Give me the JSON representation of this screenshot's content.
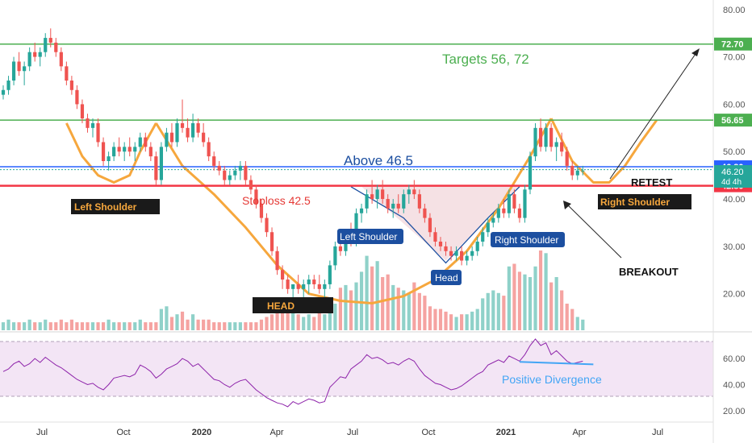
{
  "colors": {
    "up": "#26a69a",
    "down": "#ef5350",
    "vol_up": "#8fd1c9",
    "vol_down": "#f5a3a1",
    "pattern_orange": "#f6a73d",
    "target_green": "#4caf50",
    "blue_line": "#2962ff",
    "red_line": "#f23645",
    "label_blue": "#1c4fa0",
    "rsi_line": "#8e24aa",
    "rsi_band": "#f3e5f5",
    "divergence": "#42a5f5",
    "head_fill": "#f3d9dd",
    "axis_text": "#555555"
  },
  "chart_data": {
    "type": "candlestick",
    "title": "",
    "price_axis": {
      "min": 14,
      "max": 82,
      "ticks": [
        "20.00",
        "30.00",
        "40.00",
        "50.00",
        "60.00",
        "70.00",
        "80.00"
      ]
    },
    "time_axis": {
      "ticks": [
        "Jul",
        "Oct",
        "2020",
        "Apr",
        "Jul",
        "Oct",
        "2021",
        "Apr",
        "Jul"
      ]
    },
    "rsi_axis": {
      "min": 15,
      "max": 78,
      "ticks": [
        "20.00",
        "40.00",
        "60.00"
      ],
      "band": [
        30,
        70
      ]
    },
    "candles": [
      [
        62,
        64,
        61,
        63
      ],
      [
        63,
        66,
        62,
        65
      ],
      [
        65,
        70,
        64,
        69
      ],
      [
        69,
        71,
        66,
        67
      ],
      [
        67,
        69,
        64,
        68
      ],
      [
        68,
        72,
        67,
        71
      ],
      [
        71,
        73,
        69,
        70
      ],
      [
        70,
        72,
        68,
        71
      ],
      [
        71,
        75,
        70,
        74
      ],
      [
        74,
        76,
        72,
        73
      ],
      [
        73,
        74,
        70,
        71
      ],
      [
        71,
        72,
        67,
        68
      ],
      [
        68,
        69,
        64,
        65
      ],
      [
        65,
        66,
        62,
        63
      ],
      [
        63,
        64,
        59,
        60
      ],
      [
        60,
        61,
        56,
        57
      ],
      [
        57,
        58,
        54,
        55
      ],
      [
        55,
        57,
        53,
        56
      ],
      [
        56,
        57,
        51,
        52
      ],
      [
        52,
        53,
        47,
        48
      ],
      [
        48,
        50,
        46,
        49
      ],
      [
        49,
        52,
        48,
        51
      ],
      [
        51,
        53,
        49,
        50
      ],
      [
        50,
        52,
        48,
        51
      ],
      [
        51,
        53,
        49,
        50
      ],
      [
        50,
        52,
        48,
        51
      ],
      [
        51,
        54,
        50,
        53
      ],
      [
        53,
        54,
        50,
        51
      ],
      [
        51,
        52,
        48,
        49
      ],
      [
        49,
        50,
        43,
        44
      ],
      [
        44,
        52,
        43,
        51
      ],
      [
        51,
        55,
        50,
        54
      ],
      [
        54,
        56,
        51,
        52
      ],
      [
        52,
        57,
        51,
        56
      ],
      [
        56,
        61,
        54,
        55
      ],
      [
        55,
        57,
        52,
        53
      ],
      [
        53,
        58,
        52,
        56
      ],
      [
        56,
        57,
        53,
        54
      ],
      [
        54,
        56,
        51,
        52
      ],
      [
        52,
        53,
        48,
        49
      ],
      [
        49,
        50,
        46,
        47
      ],
      [
        47,
        48,
        45,
        46
      ],
      [
        46,
        47,
        43,
        44
      ],
      [
        44,
        46,
        43,
        45
      ],
      [
        45,
        47,
        44,
        46
      ],
      [
        46,
        48,
        44,
        47
      ],
      [
        47,
        48,
        43,
        44
      ],
      [
        44,
        45,
        41,
        42
      ],
      [
        42,
        43,
        38,
        39
      ],
      [
        39,
        40,
        35,
        36
      ],
      [
        36,
        37,
        32,
        33
      ],
      [
        33,
        34,
        28,
        29
      ],
      [
        29,
        30,
        24,
        25
      ],
      [
        25,
        26,
        21,
        23
      ],
      [
        23,
        24,
        20,
        21
      ],
      [
        21,
        22,
        19,
        22
      ],
      [
        22,
        24,
        20,
        21
      ],
      [
        21,
        23,
        19,
        22
      ],
      [
        22,
        24,
        20,
        23
      ],
      [
        23,
        24,
        21,
        22
      ],
      [
        22,
        24,
        20,
        21
      ],
      [
        21,
        23,
        19,
        22
      ],
      [
        22,
        27,
        21,
        26
      ],
      [
        26,
        31,
        25,
        30
      ],
      [
        30,
        33,
        28,
        29
      ],
      [
        29,
        33,
        28,
        32
      ],
      [
        32,
        35,
        30,
        31
      ],
      [
        31,
        38,
        30,
        37
      ],
      [
        37,
        39,
        35,
        38
      ],
      [
        38,
        42,
        37,
        41
      ],
      [
        41,
        44,
        39,
        40
      ],
      [
        40,
        43,
        38,
        42
      ],
      [
        42,
        44,
        39,
        40
      ],
      [
        40,
        41,
        37,
        38
      ],
      [
        38,
        40,
        36,
        39
      ],
      [
        39,
        41,
        37,
        38
      ],
      [
        38,
        42,
        37,
        41
      ],
      [
        41,
        43,
        39,
        42
      ],
      [
        42,
        44,
        40,
        41
      ],
      [
        41,
        42,
        37,
        38
      ],
      [
        38,
        39,
        35,
        36
      ],
      [
        36,
        37,
        32,
        33
      ],
      [
        33,
        34,
        30,
        31
      ],
      [
        31,
        32,
        29,
        30
      ],
      [
        30,
        31,
        28,
        29
      ],
      [
        29,
        30,
        27,
        28
      ],
      [
        28,
        30,
        27,
        29
      ],
      [
        29,
        30,
        26,
        27
      ],
      [
        27,
        29,
        26,
        28
      ],
      [
        28,
        30,
        27,
        29
      ],
      [
        29,
        32,
        28,
        31
      ],
      [
        31,
        34,
        30,
        33
      ],
      [
        33,
        36,
        32,
        35
      ],
      [
        35,
        37,
        34,
        36
      ],
      [
        36,
        39,
        35,
        38
      ],
      [
        38,
        40,
        36,
        37
      ],
      [
        37,
        42,
        36,
        41
      ],
      [
        41,
        42,
        37,
        38
      ],
      [
        38,
        39,
        35,
        36
      ],
      [
        36,
        43,
        35,
        42
      ],
      [
        42,
        50,
        41,
        49
      ],
      [
        49,
        56,
        48,
        55
      ],
      [
        55,
        57,
        50,
        51
      ],
      [
        51,
        56,
        50,
        55
      ],
      [
        55,
        56,
        50,
        51
      ],
      [
        51,
        53,
        48,
        52
      ],
      [
        52,
        54,
        49,
        50
      ],
      [
        50,
        51,
        46,
        47
      ],
      [
        47,
        48,
        44,
        45
      ],
      [
        45,
        47,
        44,
        46
      ],
      [
        46,
        47,
        45,
        46
      ]
    ],
    "volume": [
      3,
      4,
      3,
      3,
      3,
      4,
      3,
      3,
      4,
      3,
      3,
      4,
      3,
      4,
      3,
      3,
      3,
      3,
      3,
      3,
      4,
      3,
      3,
      3,
      3,
      3,
      4,
      3,
      3,
      3,
      8,
      9,
      5,
      6,
      7,
      4,
      6,
      4,
      4,
      4,
      3,
      3,
      3,
      3,
      3,
      3,
      3,
      3,
      3,
      4,
      5,
      6,
      8,
      9,
      10,
      7,
      6,
      5,
      6,
      5,
      7,
      6,
      9,
      10,
      16,
      17,
      15,
      18,
      22,
      28,
      24,
      26,
      20,
      21,
      17,
      16,
      15,
      14,
      18,
      14,
      13,
      9,
      8,
      8,
      7,
      6,
      5,
      6,
      6,
      7,
      8,
      12,
      14,
      15,
      14,
      13,
      24,
      25,
      22,
      21,
      20,
      24,
      30,
      29,
      18,
      20,
      15,
      10,
      8,
      5,
      4
    ],
    "rsi": [
      50,
      52,
      56,
      58,
      54,
      56,
      60,
      57,
      61,
      58,
      55,
      53,
      50,
      47,
      44,
      42,
      40,
      41,
      38,
      36,
      40,
      45,
      46,
      47,
      46,
      48,
      55,
      53,
      50,
      45,
      48,
      52,
      54,
      56,
      60,
      58,
      54,
      56,
      52,
      48,
      44,
      43,
      40,
      38,
      41,
      43,
      44,
      40,
      36,
      33,
      30,
      28,
      26,
      25,
      23,
      27,
      25,
      27,
      29,
      28,
      26,
      27,
      38,
      42,
      46,
      45,
      52,
      55,
      58,
      63,
      60,
      61,
      59,
      56,
      57,
      55,
      58,
      60,
      58,
      52,
      47,
      44,
      41,
      40,
      38,
      36,
      37,
      39,
      42,
      45,
      48,
      50,
      55,
      57,
      59,
      57,
      62,
      60,
      58,
      63,
      70,
      75,
      70,
      72,
      63,
      66,
      62,
      58,
      56,
      57,
      58
    ],
    "levels": [
      {
        "value": 72.7,
        "label": "72.70"
      },
      {
        "value": 56.65,
        "label": "56.65"
      },
      {
        "value": 46.8,
        "label": "46.80"
      },
      {
        "value": 42.8,
        "label": "42.80"
      }
    ],
    "price_tags": {
      "current": "46.20",
      "timer": "4d 4h"
    },
    "annotations": {
      "targets": "Targets 56, 72",
      "above": "Above 46.5",
      "stoploss": "Stoploss 42.5",
      "retest": "RETEST",
      "breakout": "BREAKOUT",
      "left_shoulder_big": "Left Shoulder",
      "head_big": "HEAD",
      "right_shoulder_big": "Right Shoulder",
      "left_shoulder_small": "Left Shoulder",
      "head_small": "Head",
      "right_shoulder_small": "Right Shoulder",
      "divergence": "Positive Divergence"
    }
  }
}
